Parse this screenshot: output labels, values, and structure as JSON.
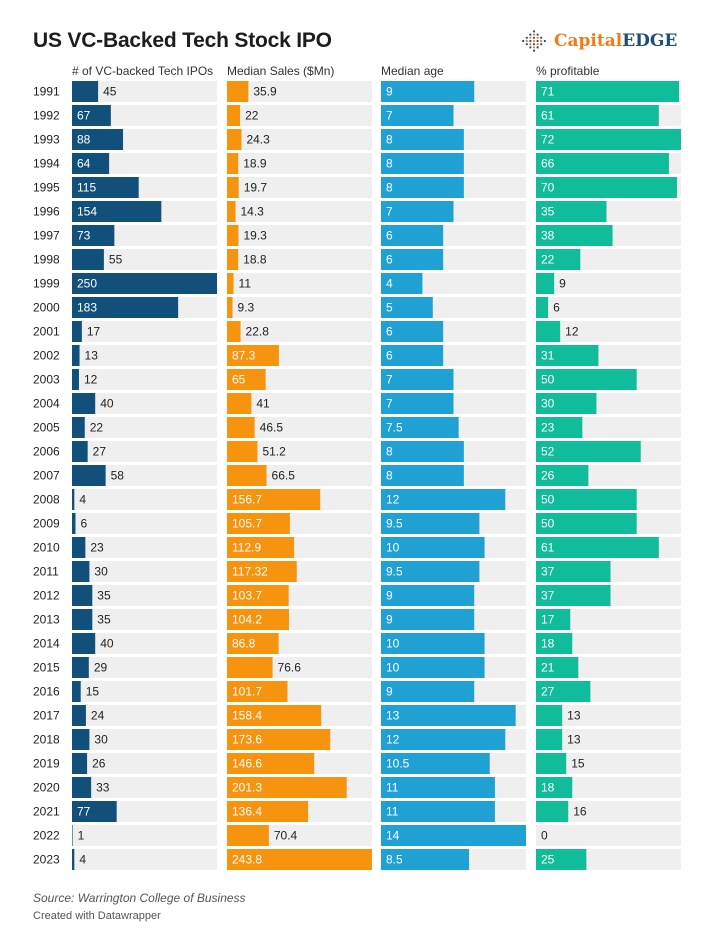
{
  "title": "US VC-Backed Tech Stock IPO",
  "logo": {
    "text_1": "Capital",
    "text_2": "EDGE",
    "icon": "dotted-diamond-icon",
    "color_1": "#f07d18",
    "color_2": "#1d4d7a"
  },
  "footer": {
    "source": "Source: Warrington College of Business",
    "credit": "Created with Datawrapper"
  },
  "chart_data": {
    "type": "table",
    "title": "US VC-Backed Tech Stock IPO",
    "categories": [
      "1991",
      "1992",
      "1993",
      "1994",
      "1995",
      "1996",
      "1997",
      "1998",
      "1999",
      "2000",
      "2001",
      "2002",
      "2003",
      "2004",
      "2005",
      "2006",
      "2007",
      "2008",
      "2009",
      "2010",
      "2011",
      "2012",
      "2013",
      "2014",
      "2015",
      "2016",
      "2017",
      "2018",
      "2019",
      "2020",
      "2021",
      "2022",
      "2023"
    ],
    "series": [
      {
        "name": "# of VC-backed Tech IPOs",
        "color": "#12507c",
        "max": 250,
        "labels": [
          "45",
          "67",
          "88",
          "64",
          "115",
          "154",
          "73",
          "55",
          "250",
          "183",
          "17",
          "13",
          "12",
          "40",
          "22",
          "27",
          "58",
          "4",
          "6",
          "23",
          "30",
          "35",
          "35",
          "40",
          "29",
          "15",
          "24",
          "30",
          "26",
          "33",
          "77",
          "1",
          "4"
        ],
        "values": [
          45,
          67,
          88,
          64,
          115,
          154,
          73,
          55,
          250,
          183,
          17,
          13,
          12,
          40,
          22,
          27,
          58,
          4,
          6,
          23,
          30,
          35,
          35,
          40,
          29,
          15,
          24,
          30,
          26,
          33,
          77,
          1,
          4
        ]
      },
      {
        "name": "Median Sales ($Mn)",
        "color": "#f6930f",
        "max": 243.8,
        "labels": [
          "35.9",
          "22",
          "24.3",
          "18.9",
          "19.7",
          "14.3",
          "19.3",
          "18.8",
          "11",
          "9.3",
          "22.8",
          "87.3",
          "65",
          "41",
          "46.5",
          "51.2",
          "66.5",
          "156.7",
          "105.7",
          "112.9",
          "117.32",
          "103.7",
          "104.2",
          "86.8",
          "76.6",
          "101.7",
          "158.4",
          "173.6",
          "146.6",
          "201.3",
          "136.4",
          "70.4",
          "243.8"
        ],
        "values": [
          35.9,
          22,
          24.3,
          18.9,
          19.7,
          14.3,
          19.3,
          18.8,
          11,
          9.3,
          22.8,
          87.3,
          65,
          41,
          46.5,
          51.2,
          66.5,
          156.7,
          105.7,
          112.9,
          117.32,
          103.7,
          104.2,
          86.8,
          76.6,
          101.7,
          158.4,
          173.6,
          146.6,
          201.3,
          136.4,
          70.4,
          243.8
        ]
      },
      {
        "name": "Median age",
        "color": "#20a1d4",
        "max": 14,
        "labels": [
          "9",
          "7",
          "8",
          "8",
          "8",
          "7",
          "6",
          "6",
          "4",
          "5",
          "6",
          "6",
          "7",
          "7",
          "7.5",
          "8",
          "8",
          "12",
          "9.5",
          "10",
          "9.5",
          "9",
          "9",
          "10",
          "10",
          "9",
          "13",
          "12",
          "10.5",
          "11",
          "11",
          "14",
          "8.5"
        ],
        "values": [
          9,
          7,
          8,
          8,
          8,
          7,
          6,
          6,
          4,
          5,
          6,
          6,
          7,
          7,
          7.5,
          8,
          8,
          12,
          9.5,
          10,
          9.5,
          9,
          9,
          10,
          10,
          9,
          13,
          12,
          10.5,
          11,
          11,
          14,
          8.5
        ]
      },
      {
        "name": "% profitable",
        "color": "#10bc9a",
        "max": 72,
        "labels": [
          "71",
          "61",
          "72",
          "66",
          "70",
          "35",
          "38",
          "22",
          "9",
          "6",
          "12",
          "31",
          "50",
          "30",
          "23",
          "52",
          "26",
          "50",
          "50",
          "61",
          "37",
          "37",
          "17",
          "18",
          "21",
          "27",
          "13",
          "13",
          "15",
          "18",
          "16",
          "0",
          "25"
        ],
        "values": [
          71,
          61,
          72,
          66,
          70,
          35,
          38,
          22,
          9,
          6,
          12,
          31,
          50,
          30,
          23,
          52,
          26,
          50,
          50,
          61,
          37,
          37,
          17,
          18,
          21,
          27,
          13,
          13,
          15,
          18,
          16,
          0,
          25
        ]
      }
    ]
  }
}
